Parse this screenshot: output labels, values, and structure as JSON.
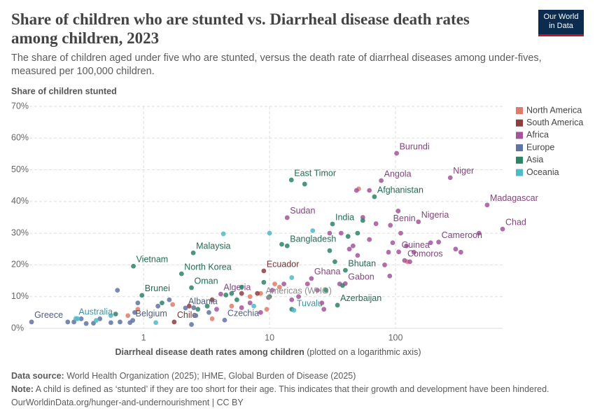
{
  "chart_data": {
    "type": "scatter",
    "title": "Share of children who are stunted vs. Diarrheal disease death rates among children, 2023",
    "subtitle": "The share of children aged under five who are stunted, versus the death rate of diarrheal diseases among under-fives, measured per 100,000 children.",
    "logo": [
      "Our World",
      "in Data"
    ],
    "y_axis_title": "Share of children stunted",
    "x_axis_title": "Diarrheal disease death rates among children",
    "x_axis_note": "(plotted on a logarithmic axis)",
    "xscale": "log",
    "xlim": [
      0.124,
      708
    ],
    "xticks": [
      1,
      10,
      100
    ],
    "ylim": [
      0,
      70
    ],
    "yticks": [
      {
        "value": 0,
        "label": "0%"
      },
      {
        "value": 10,
        "label": "10%"
      },
      {
        "value": 20,
        "label": "20%"
      },
      {
        "value": 30,
        "label": "30%"
      },
      {
        "value": 40,
        "label": "40%"
      },
      {
        "value": 50,
        "label": "50%"
      },
      {
        "value": 60,
        "label": "60%"
      },
      {
        "value": 70,
        "label": "70%"
      }
    ],
    "grid": true,
    "legend": "right",
    "series": [
      {
        "name": "North America",
        "color": "#e07b69",
        "x": [
          0.9,
          1.7,
          3.5,
          5,
          7,
          8.5,
          9.5,
          11,
          12,
          51,
          124,
          0.75
        ],
        "y": [
          6,
          7.5,
          3,
          7,
          10,
          11,
          6,
          14,
          13,
          44,
          21,
          4
        ],
        "labels": [
          null,
          null,
          null,
          null,
          null,
          null,
          null,
          null,
          null,
          null,
          null,
          null
        ]
      },
      {
        "name": "South America",
        "color": "#8c3e3e",
        "x": [
          1.75,
          9.0,
          3.5,
          6,
          8,
          2.3
        ],
        "y": [
          2.0,
          18.1,
          9,
          11,
          11,
          7
        ],
        "labels": [
          "Chile",
          "Ecuador",
          null,
          null,
          null,
          null
        ]
      },
      {
        "name": "Africa",
        "color": "#a2559c",
        "x": [
          4.1,
          13.8,
          21.5,
          39.9,
          77,
          102,
          272,
          534,
          708,
          152,
          91,
          220,
          106,
          118,
          3.8,
          6,
          8.5,
          10.5,
          13,
          15,
          17,
          20,
          24,
          26,
          30,
          36,
          43,
          46,
          50,
          55,
          62,
          70,
          82,
          88,
          95,
          105,
          110,
          122,
          130,
          140,
          190,
          300,
          330,
          460,
          90,
          62,
          49,
          27,
          37,
          7
        ],
        "y": [
          10.8,
          34.9,
          15.7,
          14.1,
          46.6,
          55.2,
          47.5,
          38.9,
          31.3,
          33.6,
          32.5,
          27.2,
          24.1,
          21.4,
          6,
          6.5,
          5,
          12,
          14,
          9,
          10,
          14,
          12,
          8,
          30,
          14,
          25,
          26,
          23,
          35,
          28,
          33,
          20,
          24,
          27,
          37,
          30,
          26,
          21,
          24,
          27,
          25,
          24,
          30,
          16.5,
          43.5,
          43.5,
          6,
          30,
          8
        ],
        "labels": [
          "Algeria",
          "Sudan",
          "Ghana",
          "Gabon",
          "Angola",
          "Burundi",
          "Niger",
          "Madagascar",
          "Chad",
          "Nigeria",
          "Benin",
          "Cameroon",
          "Guinea",
          "Comoros",
          null,
          null,
          null,
          null,
          null,
          null,
          null,
          null,
          null,
          null,
          null,
          null,
          null,
          null,
          null,
          null,
          null,
          null,
          null,
          null,
          null,
          null,
          null,
          null,
          null,
          null,
          null,
          null,
          null,
          null,
          null,
          null,
          null,
          null,
          null,
          null
        ]
      },
      {
        "name": "Europe",
        "color": "#6173a3",
        "x": [
          0.129,
          2.15,
          4.4,
          0.82,
          0.25,
          0.28,
          0.32,
          0.35,
          0.4,
          0.45,
          0.55,
          0.62,
          0.65,
          0.78,
          0.85,
          0.9,
          1.3,
          1.6,
          2.4,
          2.6,
          2.5,
          3.3
        ],
        "y": [
          2.0,
          6.4,
          2.6,
          2.5,
          2,
          2,
          3,
          1.5,
          1.6,
          3,
          1.8,
          12,
          2,
          1.8,
          5,
          8,
          7,
          9,
          1.2,
          4,
          6.5,
          5
        ],
        "labels": [
          "Greece",
          "Albania",
          "Czechia",
          "Belgium",
          null,
          null,
          null,
          null,
          null,
          null,
          null,
          null,
          null,
          null,
          null,
          null,
          null,
          null,
          null,
          null,
          null,
          null
        ]
      },
      {
        "name": "Asia",
        "color": "#2c8465",
        "x": [
          0.97,
          0.83,
          2.0,
          2.4,
          2.48,
          14.9,
          31.6,
          13.8,
          40,
          34.6,
          68,
          0.6,
          1.4,
          2.7,
          3.2,
          4.5,
          5,
          5.5,
          6,
          9,
          10,
          12.5,
          15,
          30,
          33,
          42,
          50,
          55,
          28,
          38,
          19
        ],
        "y": [
          10.4,
          19.6,
          17.2,
          12.8,
          23.8,
          46.8,
          32.9,
          26.0,
          18.3,
          7.3,
          41.5,
          4.5,
          8,
          6,
          7,
          10.5,
          11,
          9,
          13,
          14.5,
          10,
          26.5,
          6,
          24.5,
          21,
          29,
          30,
          34,
          12,
          13.5,
          45.5
        ],
        "labels": [
          "Brunei",
          "Vietnam",
          "North Korea",
          "Oman",
          "Malaysia",
          "East Timor",
          "India",
          "Bangladesh",
          "Bhutan",
          "Azerbaijan",
          "Afghanistan",
          null,
          null,
          null,
          null,
          null,
          null,
          null,
          null,
          null,
          null,
          null,
          null,
          null,
          null,
          null,
          null,
          null,
          null,
          null,
          null
        ]
      },
      {
        "name": "Oceania",
        "color": "#4fb9c7",
        "x": [
          0.29,
          15.6,
          0.3,
          0.42,
          0.55,
          1.25,
          4.3,
          10,
          22,
          7.5,
          15
        ],
        "y": [
          3.1,
          5.7,
          3,
          2.5,
          4,
          1.8,
          29.8,
          30,
          30.8,
          7,
          16
        ],
        "labels": [
          "Australia",
          "Tuvalu",
          null,
          null,
          null,
          null,
          null,
          null,
          null,
          null,
          null
        ]
      }
    ],
    "highlight_point": {
      "label": "Americas (WHO)",
      "x": 9.8,
      "y": 9.7,
      "color": "#8c8c8c"
    },
    "source_label": "Data source:",
    "source": "World Health Organization (2025); IHME, Global Burden of Disease (2025)",
    "note_label": "Note:",
    "note": "A child is defined as ‘stunted’ if they are too short for their age. This indicates that their growth and development have been hindered.",
    "url": "OurWorldinData.org/hunger-and-undernourishment | CC BY"
  }
}
